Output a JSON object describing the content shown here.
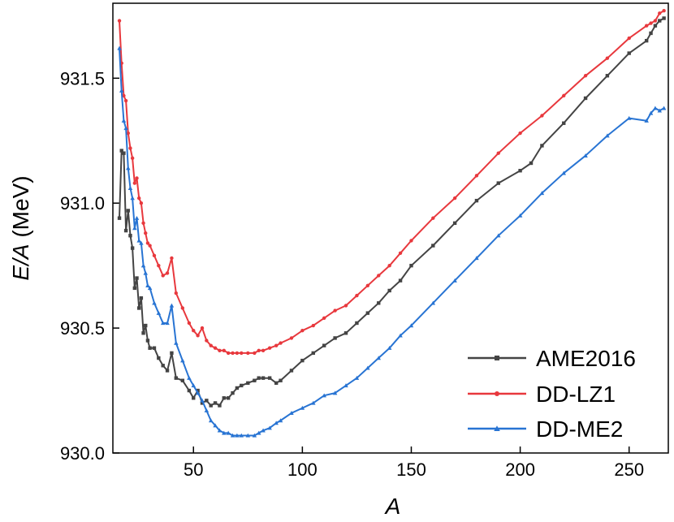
{
  "chart_data": {
    "type": "line",
    "title": "",
    "xlabel": "A",
    "ylabel": "E/A (MeV)",
    "xlim": [
      13,
      268
    ],
    "ylim": [
      930.0,
      931.8
    ],
    "xticks": [
      50,
      100,
      150,
      200,
      250
    ],
    "yticks": [
      930.0,
      930.5,
      931.0,
      931.5
    ],
    "xtick_labels": [
      "50",
      "100",
      "150",
      "200",
      "250"
    ],
    "ytick_labels": [
      "930.0",
      "930.5",
      "931.0",
      "931.5"
    ],
    "grid": false,
    "legend_position": "bottom-right",
    "series": [
      {
        "name": "AME2016",
        "color": "#444444",
        "marker": "square",
        "x": [
          16,
          17,
          18,
          19,
          20,
          21,
          22,
          23,
          24,
          25,
          26,
          27,
          28,
          29,
          30,
          32,
          34,
          36,
          38,
          40,
          42,
          45,
          48,
          50,
          52,
          54,
          56,
          58,
          60,
          62,
          64,
          66,
          68,
          70,
          72,
          75,
          78,
          80,
          82,
          85,
          88,
          90,
          95,
          100,
          105,
          110,
          115,
          120,
          125,
          130,
          135,
          140,
          145,
          150,
          160,
          170,
          180,
          190,
          200,
          205,
          210,
          220,
          230,
          240,
          250,
          258,
          260,
          262,
          264,
          266
        ],
        "y": [
          930.94,
          931.21,
          931.2,
          930.89,
          930.97,
          930.87,
          930.82,
          930.66,
          930.7,
          930.58,
          930.62,
          930.48,
          930.51,
          930.45,
          930.42,
          930.42,
          930.38,
          930.35,
          930.33,
          930.4,
          930.3,
          930.29,
          930.25,
          930.22,
          930.25,
          930.2,
          930.21,
          930.19,
          930.2,
          930.19,
          930.22,
          930.22,
          930.24,
          930.26,
          930.27,
          930.28,
          930.29,
          930.3,
          930.3,
          930.3,
          930.28,
          930.29,
          930.33,
          930.37,
          930.4,
          930.43,
          930.46,
          930.48,
          930.52,
          930.56,
          930.6,
          930.65,
          930.69,
          930.75,
          930.83,
          930.92,
          931.01,
          931.08,
          931.13,
          931.16,
          931.23,
          931.32,
          931.42,
          931.51,
          931.6,
          931.65,
          931.68,
          931.71,
          931.73,
          931.74
        ]
      },
      {
        "name": "DD-LZ1",
        "color": "#e8383d",
        "marker": "circle",
        "x": [
          16,
          17,
          18,
          19,
          20,
          21,
          22,
          23,
          24,
          25,
          26,
          27,
          28,
          29,
          30,
          32,
          34,
          36,
          38,
          40,
          42,
          45,
          48,
          50,
          52,
          54,
          56,
          58,
          60,
          62,
          64,
          66,
          68,
          70,
          72,
          75,
          78,
          80,
          82,
          85,
          88,
          90,
          95,
          100,
          105,
          110,
          115,
          120,
          125,
          130,
          135,
          140,
          145,
          150,
          160,
          170,
          180,
          190,
          200,
          210,
          220,
          230,
          240,
          250,
          258,
          260,
          262,
          264,
          266
        ],
        "y": [
          931.73,
          931.56,
          931.43,
          931.41,
          931.28,
          931.22,
          931.18,
          931.08,
          931.1,
          931.02,
          931.0,
          930.92,
          930.88,
          930.84,
          930.83,
          930.79,
          930.75,
          930.71,
          930.72,
          930.78,
          930.64,
          930.58,
          930.52,
          930.49,
          930.47,
          930.5,
          930.45,
          930.43,
          930.42,
          930.41,
          930.41,
          930.4,
          930.4,
          930.4,
          930.4,
          930.4,
          930.4,
          930.41,
          930.41,
          930.42,
          930.43,
          930.44,
          930.46,
          930.49,
          930.51,
          930.54,
          930.57,
          930.59,
          930.63,
          930.67,
          930.71,
          930.75,
          930.8,
          930.85,
          930.94,
          931.02,
          931.11,
          931.2,
          931.28,
          931.35,
          931.43,
          931.51,
          931.58,
          931.66,
          931.71,
          931.72,
          931.73,
          931.76,
          931.77
        ]
      },
      {
        "name": "DD-ME2",
        "color": "#2874d3",
        "marker": "triangle",
        "x": [
          16,
          17,
          18,
          19,
          20,
          21,
          22,
          23,
          24,
          25,
          26,
          27,
          28,
          29,
          30,
          32,
          34,
          36,
          38,
          40,
          42,
          45,
          48,
          50,
          52,
          54,
          56,
          58,
          60,
          62,
          64,
          66,
          68,
          70,
          72,
          75,
          78,
          80,
          82,
          85,
          88,
          90,
          95,
          100,
          105,
          110,
          115,
          120,
          125,
          130,
          135,
          140,
          145,
          150,
          160,
          170,
          180,
          190,
          200,
          210,
          220,
          230,
          240,
          250,
          258,
          260,
          262,
          264,
          266
        ],
        "y": [
          931.62,
          931.45,
          931.33,
          931.3,
          931.14,
          931.06,
          931.02,
          930.9,
          930.94,
          930.85,
          930.84,
          930.75,
          930.72,
          930.67,
          930.66,
          930.6,
          930.56,
          930.52,
          930.52,
          930.59,
          930.44,
          930.37,
          930.3,
          930.27,
          930.24,
          930.21,
          930.17,
          930.13,
          930.11,
          930.09,
          930.08,
          930.08,
          930.07,
          930.07,
          930.07,
          930.07,
          930.07,
          930.08,
          930.09,
          930.1,
          930.12,
          930.13,
          930.16,
          930.18,
          930.2,
          930.23,
          930.24,
          930.27,
          930.3,
          930.34,
          930.38,
          930.42,
          930.47,
          930.51,
          930.6,
          930.69,
          930.78,
          930.87,
          930.95,
          931.04,
          931.12,
          931.19,
          931.27,
          931.34,
          931.33,
          931.36,
          931.38,
          931.37,
          931.38
        ]
      }
    ]
  }
}
